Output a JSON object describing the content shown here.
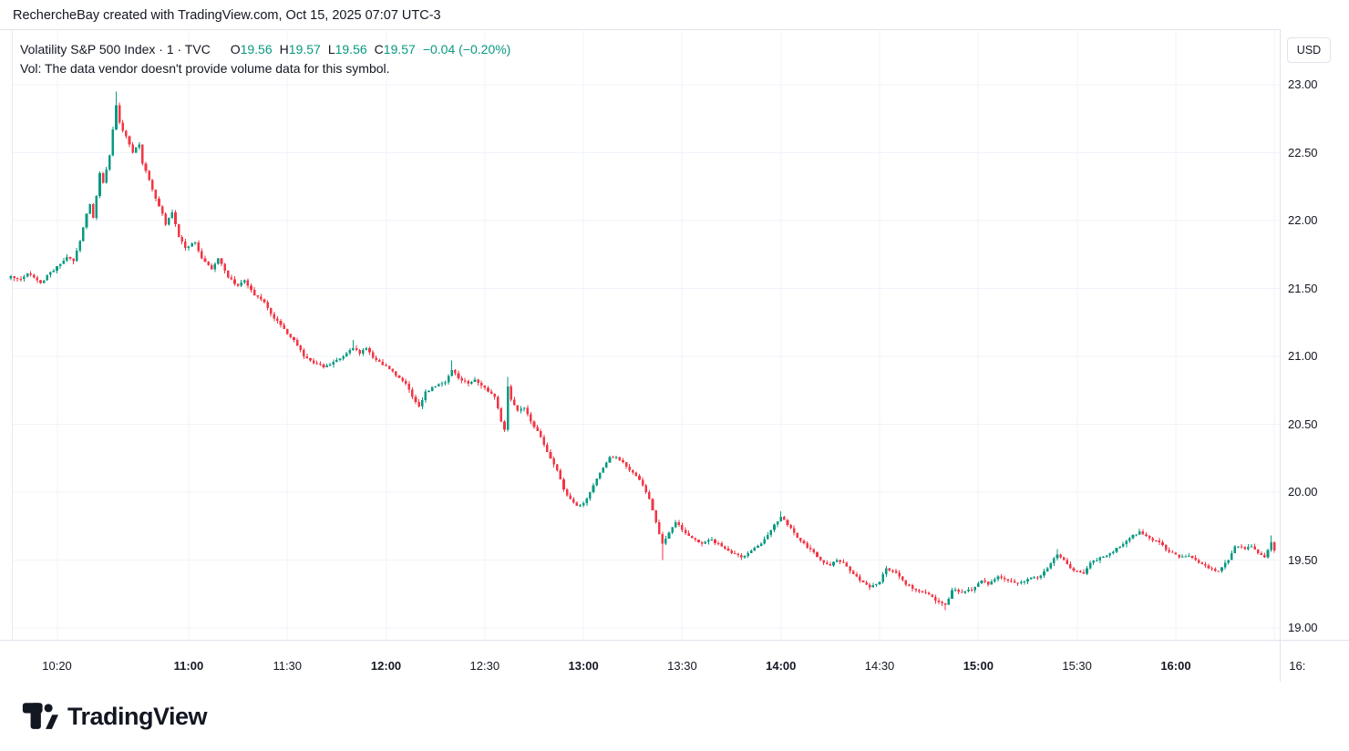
{
  "header": {
    "attribution": "RechercheBay created with TradingView.com, Oct 15, 2025 07:07 UTC-3"
  },
  "legend": {
    "symbol_line": "Volatility S&P 500 Index · 1 · TVC",
    "ohlc_items": [
      {
        "label": "O",
        "value": "19.56"
      },
      {
        "label": "H",
        "value": "19.57"
      },
      {
        "label": "L",
        "value": "19.56"
      },
      {
        "label": "C",
        "value": "19.57"
      }
    ],
    "change": "−0.04 (−0.20%)",
    "volume_note": "Vol: The data vendor doesn't provide volume data for this symbol."
  },
  "price_axis": {
    "currency_button": "USD",
    "ticks": [
      "23.00",
      "22.50",
      "22.00",
      "21.50",
      "21.00",
      "20.50",
      "20.00",
      "19.50",
      "19.00"
    ]
  },
  "time_axis": {
    "labels": [
      {
        "text": "10:20",
        "time": "10:20",
        "bold": false,
        "clipped": false
      },
      {
        "text": "11:00",
        "time": "11:00",
        "bold": true,
        "clipped": false
      },
      {
        "text": "11:30",
        "time": "11:30",
        "bold": false,
        "clipped": false
      },
      {
        "text": "12:00",
        "time": "12:00",
        "bold": true,
        "clipped": false
      },
      {
        "text": "12:30",
        "time": "12:30",
        "bold": false,
        "clipped": false
      },
      {
        "text": "13:00",
        "time": "13:00",
        "bold": true,
        "clipped": false
      },
      {
        "text": "13:30",
        "time": "13:30",
        "bold": false,
        "clipped": false
      },
      {
        "text": "14:00",
        "time": "14:00",
        "bold": true,
        "clipped": false
      },
      {
        "text": "14:30",
        "time": "14:30",
        "bold": false,
        "clipped": false
      },
      {
        "text": "15:00",
        "time": "15:00",
        "bold": true,
        "clipped": false
      },
      {
        "text": "15:30",
        "time": "15:30",
        "bold": false,
        "clipped": false
      },
      {
        "text": "16:00",
        "time": "16:00",
        "bold": true,
        "clipped": false
      },
      {
        "text": "16:",
        "time": "16:30",
        "bold": false,
        "clipped": true
      }
    ]
  },
  "branding": {
    "logo_text": "TradingView",
    "logo_icon": "tradingview-logo-mark"
  },
  "colors": {
    "up": "#089981",
    "down": "#f23645",
    "text": "#131722",
    "grid": "#f0f3fa",
    "border": "#e0e3eb",
    "background": "#ffffff"
  },
  "chart_data": {
    "type": "candlestick",
    "title": "Volatility S&P 500 Index",
    "exchange": "TVC",
    "interval_minutes": 1,
    "currency": "USD",
    "session_start": "10:06",
    "session_end": "16:30",
    "y_axis_ticks": [
      23.0,
      22.5,
      22.0,
      21.5,
      21.0,
      20.5,
      20.0,
      19.5,
      19.0
    ],
    "y_axis_visible_range": [
      18.91,
      23.42
    ],
    "day_high": 22.95,
    "day_low": 19.13,
    "current_bar": {
      "open": 19.56,
      "high": 19.57,
      "low": 19.56,
      "close": 19.57,
      "change": "-0.04",
      "change_pct": "-0.20%"
    },
    "price_path_anchors": [
      {
        "t": "10:06",
        "c": 21.59
      },
      {
        "t": "10:09",
        "c": 21.57
      },
      {
        "t": "10:11",
        "c": 21.61
      },
      {
        "t": "10:13",
        "c": 21.58
      },
      {
        "t": "10:15",
        "c": 21.54
      },
      {
        "t": "10:17",
        "c": 21.6
      },
      {
        "t": "10:19",
        "c": 21.63
      },
      {
        "t": "10:21",
        "c": 21.68
      },
      {
        "t": "10:23",
        "c": 21.73
      },
      {
        "t": "10:25",
        "c": 21.7
      },
      {
        "t": "10:27",
        "c": 21.85
      },
      {
        "t": "10:29",
        "c": 22.05
      },
      {
        "t": "10:30",
        "c": 22.12
      },
      {
        "t": "10:31",
        "c": 22.02
      },
      {
        "t": "10:33",
        "c": 22.35
      },
      {
        "t": "10:34",
        "c": 22.28
      },
      {
        "t": "10:36",
        "c": 22.48
      },
      {
        "t": "10:38",
        "c": 22.85,
        "h": 22.95
      },
      {
        "t": "10:39",
        "c": 22.72
      },
      {
        "t": "10:41",
        "c": 22.62
      },
      {
        "t": "10:43",
        "c": 22.5
      },
      {
        "t": "10:45",
        "c": 22.56
      },
      {
        "t": "10:46",
        "c": 22.42
      },
      {
        "t": "10:48",
        "c": 22.3
      },
      {
        "t": "10:50",
        "c": 22.16
      },
      {
        "t": "10:52",
        "c": 22.05
      },
      {
        "t": "10:53",
        "c": 21.97
      },
      {
        "t": "10:55",
        "c": 22.06
      },
      {
        "t": "10:57",
        "c": 21.88
      },
      {
        "t": "10:59",
        "c": 21.8
      },
      {
        "t": "11:02",
        "c": 21.84
      },
      {
        "t": "11:04",
        "c": 21.72
      },
      {
        "t": "11:07",
        "c": 21.64
      },
      {
        "t": "11:09",
        "c": 21.72
      },
      {
        "t": "11:12",
        "c": 21.58
      },
      {
        "t": "11:15",
        "c": 21.52
      },
      {
        "t": "11:17",
        "c": 21.56
      },
      {
        "t": "11:20",
        "c": 21.45
      },
      {
        "t": "11:23",
        "c": 21.4
      },
      {
        "t": "11:26",
        "c": 21.28
      },
      {
        "t": "11:29",
        "c": 21.2
      },
      {
        "t": "11:32",
        "c": 21.12
      },
      {
        "t": "11:35",
        "c": 21.0
      },
      {
        "t": "11:38",
        "c": 20.95
      },
      {
        "t": "11:41",
        "c": 20.92
      },
      {
        "t": "11:44",
        "c": 20.96
      },
      {
        "t": "11:47",
        "c": 21.0
      },
      {
        "t": "11:50",
        "c": 21.06,
        "h": 21.12
      },
      {
        "t": "11:52",
        "c": 21.02
      },
      {
        "t": "11:54",
        "c": 21.06
      },
      {
        "t": "11:56",
        "c": 20.99
      },
      {
        "t": "11:58",
        "c": 20.96
      },
      {
        "t": "12:00",
        "c": 20.93
      },
      {
        "t": "12:03",
        "c": 20.86
      },
      {
        "t": "12:06",
        "c": 20.8
      },
      {
        "t": "12:08",
        "c": 20.7
      },
      {
        "t": "12:10",
        "c": 20.63
      },
      {
        "t": "12:12",
        "c": 20.74
      },
      {
        "t": "12:15",
        "c": 20.78
      },
      {
        "t": "12:18",
        "c": 20.81
      },
      {
        "t": "12:20",
        "c": 20.9,
        "h": 20.97
      },
      {
        "t": "12:22",
        "c": 20.84
      },
      {
        "t": "12:25",
        "c": 20.8
      },
      {
        "t": "12:27",
        "c": 20.83
      },
      {
        "t": "12:30",
        "c": 20.77
      },
      {
        "t": "12:33",
        "c": 20.7
      },
      {
        "t": "12:35",
        "c": 20.52
      },
      {
        "t": "12:36",
        "c": 20.46
      },
      {
        "t": "12:37",
        "c": 20.78,
        "h": 20.85
      },
      {
        "t": "12:38",
        "c": 20.68
      },
      {
        "t": "12:40",
        "c": 20.6
      },
      {
        "t": "12:42",
        "c": 20.62
      },
      {
        "t": "12:44",
        "c": 20.52
      },
      {
        "t": "12:46",
        "c": 20.45
      },
      {
        "t": "12:48",
        "c": 20.35
      },
      {
        "t": "12:50",
        "c": 20.25
      },
      {
        "t": "12:52",
        "c": 20.16
      },
      {
        "t": "12:54",
        "c": 20.02
      },
      {
        "t": "12:56",
        "c": 19.95
      },
      {
        "t": "12:58",
        "c": 19.9
      },
      {
        "t": "13:00",
        "c": 19.92
      },
      {
        "t": "13:02",
        "c": 20.0
      },
      {
        "t": "13:04",
        "c": 20.1
      },
      {
        "t": "13:06",
        "c": 20.18
      },
      {
        "t": "13:08",
        "c": 20.26
      },
      {
        "t": "13:10",
        "c": 20.26
      },
      {
        "t": "13:12",
        "c": 20.22
      },
      {
        "t": "13:14",
        "c": 20.16
      },
      {
        "t": "13:16",
        "c": 20.12
      },
      {
        "t": "13:18",
        "c": 20.05
      },
      {
        "t": "13:20",
        "c": 19.95
      },
      {
        "t": "13:22",
        "c": 19.78
      },
      {
        "t": "13:24",
        "c": 19.62,
        "l": 19.5
      },
      {
        "t": "13:26",
        "c": 19.7
      },
      {
        "t": "13:28",
        "c": 19.78
      },
      {
        "t": "13:30",
        "c": 19.72
      },
      {
        "t": "13:33",
        "c": 19.66
      },
      {
        "t": "13:36",
        "c": 19.62
      },
      {
        "t": "13:39",
        "c": 19.65
      },
      {
        "t": "13:42",
        "c": 19.6
      },
      {
        "t": "13:45",
        "c": 19.55
      },
      {
        "t": "13:48",
        "c": 19.52
      },
      {
        "t": "13:51",
        "c": 19.57
      },
      {
        "t": "13:54",
        "c": 19.62
      },
      {
        "t": "13:57",
        "c": 19.72
      },
      {
        "t": "14:00",
        "c": 19.82,
        "h": 19.86
      },
      {
        "t": "14:02",
        "c": 19.76
      },
      {
        "t": "14:04",
        "c": 19.7
      },
      {
        "t": "14:06",
        "c": 19.64
      },
      {
        "t": "14:09",
        "c": 19.58
      },
      {
        "t": "14:12",
        "c": 19.5
      },
      {
        "t": "14:15",
        "c": 19.46
      },
      {
        "t": "14:17",
        "c": 19.5
      },
      {
        "t": "14:19",
        "c": 19.48
      },
      {
        "t": "14:21",
        "c": 19.42
      },
      {
        "t": "14:24",
        "c": 19.35
      },
      {
        "t": "14:27",
        "c": 19.3
      },
      {
        "t": "14:30",
        "c": 19.34
      },
      {
        "t": "14:32",
        "c": 19.44
      },
      {
        "t": "14:34",
        "c": 19.42
      },
      {
        "t": "14:36",
        "c": 19.38
      },
      {
        "t": "14:38",
        "c": 19.32
      },
      {
        "t": "14:41",
        "c": 19.28
      },
      {
        "t": "14:44",
        "c": 19.26
      },
      {
        "t": "14:47",
        "c": 19.2
      },
      {
        "t": "14:50",
        "c": 19.17,
        "l": 19.13
      },
      {
        "t": "14:52",
        "c": 19.28
      },
      {
        "t": "14:55",
        "c": 19.26
      },
      {
        "t": "14:58",
        "c": 19.28
      },
      {
        "t": "15:01",
        "c": 19.35
      },
      {
        "t": "15:03",
        "c": 19.32
      },
      {
        "t": "15:06",
        "c": 19.38
      },
      {
        "t": "15:09",
        "c": 19.35
      },
      {
        "t": "15:12",
        "c": 19.33
      },
      {
        "t": "15:15",
        "c": 19.36
      },
      {
        "t": "15:18",
        "c": 19.37
      },
      {
        "t": "15:21",
        "c": 19.44
      },
      {
        "t": "15:24",
        "c": 19.54,
        "h": 19.58
      },
      {
        "t": "15:26",
        "c": 19.5
      },
      {
        "t": "15:28",
        "c": 19.44
      },
      {
        "t": "15:30",
        "c": 19.42
      },
      {
        "t": "15:32",
        "c": 19.4
      },
      {
        "t": "15:34",
        "c": 19.48
      },
      {
        "t": "15:37",
        "c": 19.52
      },
      {
        "t": "15:40",
        "c": 19.55
      },
      {
        "t": "15:43",
        "c": 19.6
      },
      {
        "t": "15:46",
        "c": 19.66
      },
      {
        "t": "15:49",
        "c": 19.71
      },
      {
        "t": "15:52",
        "c": 19.66
      },
      {
        "t": "15:55",
        "c": 19.63
      },
      {
        "t": "15:58",
        "c": 19.56
      },
      {
        "t": "16:01",
        "c": 19.52
      },
      {
        "t": "16:04",
        "c": 19.53
      },
      {
        "t": "16:07",
        "c": 19.48
      },
      {
        "t": "16:10",
        "c": 19.44
      },
      {
        "t": "16:13",
        "c": 19.42
      },
      {
        "t": "16:16",
        "c": 19.5
      },
      {
        "t": "16:18",
        "c": 19.6
      },
      {
        "t": "16:21",
        "c": 19.58
      },
      {
        "t": "16:23",
        "c": 19.6
      },
      {
        "t": "16:25",
        "c": 19.55
      },
      {
        "t": "16:27",
        "c": 19.52
      },
      {
        "t": "16:29",
        "c": 19.63,
        "h": 19.68
      },
      {
        "t": "16:30",
        "c": 19.57
      }
    ]
  }
}
